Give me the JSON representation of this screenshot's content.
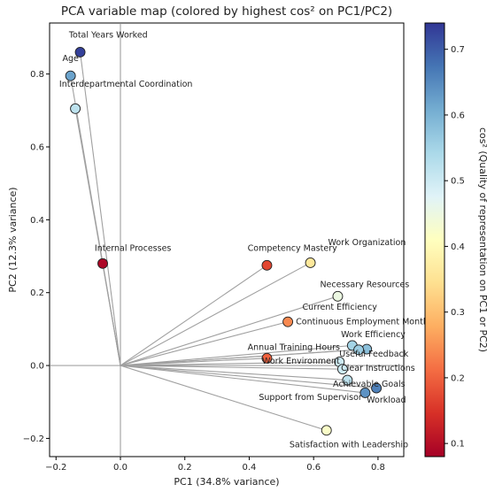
{
  "chart_data": {
    "type": "scatter",
    "title": "PCA variable map (colored by highest cos² on PC1/PC2)",
    "xlabel": "PC1 (34.8% variance)",
    "ylabel": "PC2 (12.3% variance)",
    "colorbar_label": "cos² (Quality of representation on PC1 or PC2)",
    "xlim": [
      -0.22,
      0.88
    ],
    "ylim": [
      -0.25,
      0.94
    ],
    "x_ticks": [
      "−0.2",
      "0.0",
      "0.2",
      "0.4",
      "0.6",
      "0.8"
    ],
    "y_ticks": [
      "−0.2",
      "0.0",
      "0.2",
      "0.4",
      "0.6",
      "0.8"
    ],
    "colorbar_ticks": [
      "0.1",
      "0.2",
      "0.3",
      "0.4",
      "0.5",
      "0.6",
      "0.7"
    ],
    "colorbar_range": [
      0.08,
      0.74
    ],
    "colormap": "RdYlBu",
    "grid": false,
    "reference_lines": {
      "x": 0,
      "y": 0
    },
    "points": [
      {
        "name": "Total Years Worked",
        "x": -0.125,
        "y": 0.86,
        "cos2": 0.73
      },
      {
        "name": "Age",
        "x": -0.155,
        "y": 0.795,
        "cos2": 0.62
      },
      {
        "name": "Interdepartmental Coordination",
        "x": -0.14,
        "y": 0.705,
        "cos2": 0.52
      },
      {
        "name": "Internal Processes",
        "x": -0.055,
        "y": 0.28,
        "cos2": 0.09
      },
      {
        "name": "Competency Mastery",
        "x": 0.455,
        "y": 0.275,
        "cos2": 0.17
      },
      {
        "name": "Work Organization",
        "x": 0.59,
        "y": 0.282,
        "cos2": 0.36
      },
      {
        "name": "Necessary Resources",
        "x": 0.675,
        "y": 0.19,
        "cos2": 0.45
      },
      {
        "name": "Current Efficiency",
        "x": 0.52,
        "y": 0.12,
        "cos2": 0.24
      },
      {
        "name": "Continuous Employment Months",
        "x": 0.765,
        "y": 0.045,
        "cos2": 0.58
      },
      {
        "name": "Work Efficiency",
        "x": 0.72,
        "y": 0.055,
        "cos2": 0.55
      },
      {
        "name": "Useful Feedback",
        "x": 0.74,
        "y": 0.043,
        "cos2": 0.56
      },
      {
        "name": "Annual Training Hours",
        "x": 0.455,
        "y": 0.02,
        "cos2": 0.2
      },
      {
        "name": "Work Environment",
        "x": 0.68,
        "y": 0.01,
        "cos2": 0.5
      },
      {
        "name": "Clear Instructions",
        "x": 0.69,
        "y": -0.01,
        "cos2": 0.5
      },
      {
        "name": "Achievable Goals",
        "x": 0.705,
        "y": -0.04,
        "cos2": 0.52
      },
      {
        "name": "Support from Supervisor",
        "x": 0.76,
        "y": -0.075,
        "cos2": 0.64
      },
      {
        "name": "Workload",
        "x": 0.795,
        "y": -0.062,
        "cos2": 0.66
      },
      {
        "name": "Satisfaction with Leadership",
        "x": 0.64,
        "y": -0.178,
        "cos2": 0.42
      }
    ],
    "labels": [
      {
        "text": "Total Years Worked",
        "x": -0.16,
        "y": 0.9
      },
      {
        "text": "Age",
        "x": -0.18,
        "y": 0.835
      },
      {
        "text": "Interdepartmental Coordination",
        "x": -0.19,
        "y": 0.765
      },
      {
        "text": "Internal Processes",
        "x": -0.08,
        "y": 0.315
      },
      {
        "text": "Competency Mastery",
        "x": 0.395,
        "y": 0.315
      },
      {
        "text": "Work Organization",
        "x": 0.645,
        "y": 0.33
      },
      {
        "text": "Necessary Resources",
        "x": 0.62,
        "y": 0.215
      },
      {
        "text": "Current Efficiency",
        "x": 0.565,
        "y": 0.153
      },
      {
        "text": "Continuous Employment Months",
        "x": 0.545,
        "y": 0.113
      },
      {
        "text": "Work Efficiency",
        "x": 0.685,
        "y": 0.078
      },
      {
        "text": "Annual Training Hours",
        "x": 0.395,
        "y": 0.043
      },
      {
        "text": "Useful Feedback",
        "x": 0.68,
        "y": 0.025
      },
      {
        "text": "Work Environment",
        "x": 0.44,
        "y": 0.005
      },
      {
        "text": "Clear Instructions",
        "x": 0.685,
        "y": -0.015
      },
      {
        "text": "Achievable Goals",
        "x": 0.66,
        "y": -0.058
      },
      {
        "text": "Support from Supervisor",
        "x": 0.43,
        "y": -0.095
      },
      {
        "text": "Workload",
        "x": 0.765,
        "y": -0.102
      },
      {
        "text": "Satisfaction with Leadership",
        "x": 0.525,
        "y": -0.225
      }
    ]
  }
}
